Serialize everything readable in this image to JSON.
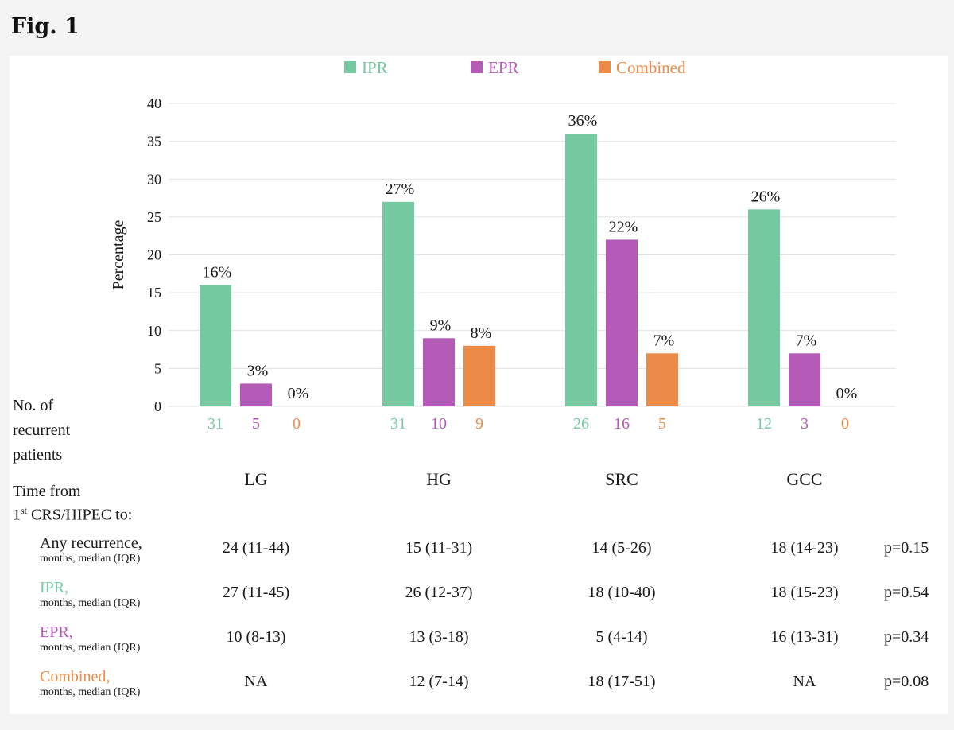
{
  "figure": {
    "title": "Fig. 1"
  },
  "colors": {
    "IPR": "#74c9a1",
    "EPR": "#b55ab6",
    "Combined": "#ec8b48"
  },
  "side_labels": {
    "count_label": [
      "No. of",
      "recurrent",
      "patients"
    ],
    "time_label": [
      "Time from",
      "1",
      "st",
      " CRS/HIPEC to:"
    ]
  },
  "chart_data": {
    "type": "bar",
    "categories": [
      "LG",
      "HG",
      "SRC",
      "GCC"
    ],
    "series": [
      {
        "name": "IPR",
        "values": [
          16,
          27,
          36,
          26
        ],
        "labels": [
          "16%",
          "27%",
          "36%",
          "26%"
        ],
        "counts": [
          "31",
          "31",
          "26",
          "12"
        ]
      },
      {
        "name": "EPR",
        "values": [
          3,
          9,
          22,
          7
        ],
        "labels": [
          "3%",
          "9%",
          "22%",
          "7%"
        ],
        "counts": [
          "5",
          "10",
          "16",
          "3"
        ]
      },
      {
        "name": "Combined",
        "values": [
          0,
          8,
          7,
          0
        ],
        "labels": [
          "0%",
          "8%",
          "7%",
          "0%"
        ],
        "counts": [
          "0",
          "9",
          "5",
          "0"
        ]
      }
    ],
    "xlabel": "",
    "ylabel": "Percentage",
    "ylim": [
      0,
      40
    ],
    "yticks": [
      0,
      5,
      10,
      15,
      20,
      25,
      30,
      35,
      40
    ],
    "grid": true,
    "legend": "top"
  },
  "table": {
    "rows": [
      {
        "label": "Any recurrence,",
        "sublabel": "months, median (IQR)",
        "color": "#1a1a1a",
        "values": [
          "24 (11-44)",
          "15 (11-31)",
          "14 (5-26)",
          "18 (14-23)"
        ],
        "p": "p=0.15"
      },
      {
        "label": "IPR,",
        "sublabel": "months, median (IQR)",
        "color": "#74c9a1",
        "values": [
          "27 (11-45)",
          "26 (12-37)",
          "18 (10-40)",
          "18 (15-23)"
        ],
        "p": "p=0.54"
      },
      {
        "label": "EPR,",
        "sublabel": "months, median (IQR)",
        "color": "#b55ab6",
        "values": [
          "10 (8-13)",
          "13 (3-18)",
          "5 (4-14)",
          "16 (13-31)"
        ],
        "p": "p=0.34"
      },
      {
        "label": "Combined,",
        "sublabel": "months, median (IQR)",
        "color": "#ec8b48",
        "values": [
          "NA",
          "12 (7-14)",
          "18 (17-51)",
          "NA"
        ],
        "p": "p=0.08"
      }
    ]
  }
}
